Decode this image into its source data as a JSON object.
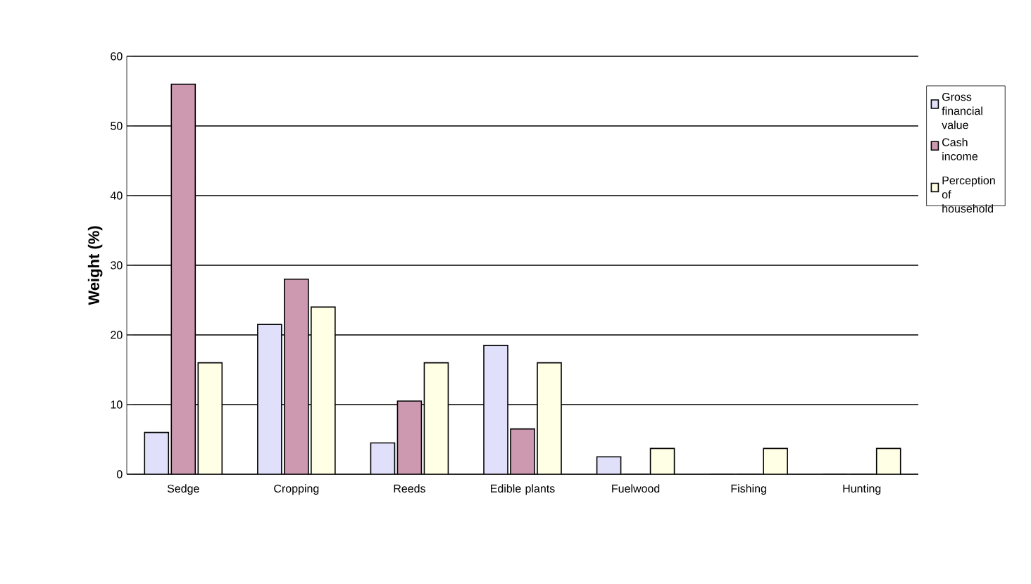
{
  "chart_data": {
    "type": "bar",
    "ylabel": "Weight (%)",
    "categories": [
      "Sedge",
      "Cropping",
      "Reeds",
      "Edible plants",
      "Fuelwood",
      "Fishing",
      "Hunting"
    ],
    "series": [
      {
        "name": "Gross financial value",
        "color": "#e0e0fa",
        "values": [
          6,
          21.5,
          4.5,
          18.5,
          2.5,
          0,
          0
        ]
      },
      {
        "name": "Cash income",
        "color": "#cc99b0",
        "values": [
          56,
          28,
          10.5,
          6.5,
          0,
          0,
          0
        ]
      },
      {
        "name": "Perception of household",
        "color": "#ffffe6",
        "values": [
          16,
          24,
          16,
          16,
          3.7,
          3.7,
          3.7
        ]
      }
    ],
    "ylim": [
      0,
      60
    ],
    "yticks": [
      0,
      10,
      20,
      30,
      40,
      50,
      60
    ],
    "grid": "y",
    "legend": "right"
  }
}
